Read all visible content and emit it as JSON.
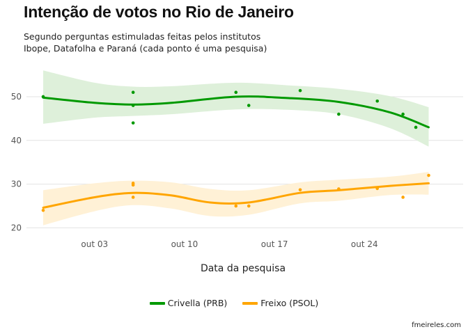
{
  "title": "Intenção de votos no Rio de Janeiro",
  "subtitle_lines": [
    "Segundo perguntas estimuladas feitas pelos institutos",
    "Ibope, Datafolha e Paraná (cada ponto é uma pesquisa)"
  ],
  "credit": "fmeireles.com",
  "chart_data": {
    "type": "scatter",
    "title": "Intenção de votos no Rio de Janeiro",
    "xlabel": "Data da pesquisa",
    "ylabel": "",
    "x_domain": [
      "2016-09-29",
      "2016-10-30"
    ],
    "ylim": [
      18,
      57
    ],
    "x_ticks": [
      {
        "date": "2016-10-03",
        "label": "out 03"
      },
      {
        "date": "2016-10-10",
        "label": "out 10"
      },
      {
        "date": "2016-10-17",
        "label": "out 17"
      },
      {
        "date": "2016-10-24",
        "label": "out 24"
      }
    ],
    "y_ticks": [
      20,
      30,
      40,
      50
    ],
    "grid": true,
    "legend_position": "bottom",
    "series": [
      {
        "name": "Crivella (PRB)",
        "color": "#009900",
        "band_color": "#dcefd8",
        "points": [
          {
            "x": "2016-09-29",
            "y": 50
          },
          {
            "x": "2016-10-06",
            "y": 51
          },
          {
            "x": "2016-10-06",
            "y": 48
          },
          {
            "x": "2016-10-06",
            "y": 44
          },
          {
            "x": "2016-10-14",
            "y": 51
          },
          {
            "x": "2016-10-15",
            "y": 48
          },
          {
            "x": "2016-10-19",
            "y": 51.4
          },
          {
            "x": "2016-10-22",
            "y": 46
          },
          {
            "x": "2016-10-25",
            "y": 49
          },
          {
            "x": "2016-10-27",
            "y": 46
          },
          {
            "x": "2016-10-28",
            "y": 43
          }
        ],
        "trend": [
          {
            "x": "2016-09-29",
            "y": 49.8
          },
          {
            "x": "2016-10-03",
            "y": 48.6
          },
          {
            "x": "2016-10-06",
            "y": 48.2
          },
          {
            "x": "2016-10-09",
            "y": 48.6
          },
          {
            "x": "2016-10-14",
            "y": 50.0
          },
          {
            "x": "2016-10-18",
            "y": 49.7
          },
          {
            "x": "2016-10-22",
            "y": 48.8
          },
          {
            "x": "2016-10-26",
            "y": 46.4
          },
          {
            "x": "2016-10-29",
            "y": 43
          }
        ],
        "band_upper": [
          56,
          53.2,
          52.3,
          52.4,
          53.2,
          52.6,
          51.8,
          50.1,
          47.6
        ],
        "band_lower": [
          43.8,
          45.2,
          45.6,
          46.0,
          47.1,
          47.0,
          46.0,
          42.8,
          38.6
        ]
      },
      {
        "name": "Freixo (PSOL)",
        "color": "#ffa500",
        "band_color": "#fff0d4",
        "points": [
          {
            "x": "2016-09-29",
            "y": 24
          },
          {
            "x": "2016-10-06",
            "y": 30.2
          },
          {
            "x": "2016-10-06",
            "y": 29.8
          },
          {
            "x": "2016-10-06",
            "y": 27
          },
          {
            "x": "2016-10-14",
            "y": 25
          },
          {
            "x": "2016-10-15",
            "y": 25
          },
          {
            "x": "2016-10-19",
            "y": 28.7
          },
          {
            "x": "2016-10-22",
            "y": 28.9
          },
          {
            "x": "2016-10-25",
            "y": 29
          },
          {
            "x": "2016-10-27",
            "y": 27
          },
          {
            "x": "2016-10-29",
            "y": 32
          }
        ],
        "trend": [
          {
            "x": "2016-09-29",
            "y": 24.6
          },
          {
            "x": "2016-10-03",
            "y": 27.0
          },
          {
            "x": "2016-10-06",
            "y": 28.0
          },
          {
            "x": "2016-10-09",
            "y": 27.4
          },
          {
            "x": "2016-10-12",
            "y": 25.8
          },
          {
            "x": "2016-10-15",
            "y": 25.8
          },
          {
            "x": "2016-10-19",
            "y": 28.0
          },
          {
            "x": "2016-10-22",
            "y": 28.6
          },
          {
            "x": "2016-10-26",
            "y": 29.6
          },
          {
            "x": "2016-10-29",
            "y": 30.2
          }
        ],
        "band_upper": [
          28.6,
          30.2,
          30.8,
          30.4,
          28.9,
          28.6,
          30.4,
          31.0,
          31.7,
          32.8
        ],
        "band_lower": [
          20.6,
          23.8,
          25.2,
          24.4,
          22.7,
          23.0,
          25.6,
          26.2,
          27.5,
          27.6
        ]
      }
    ]
  }
}
